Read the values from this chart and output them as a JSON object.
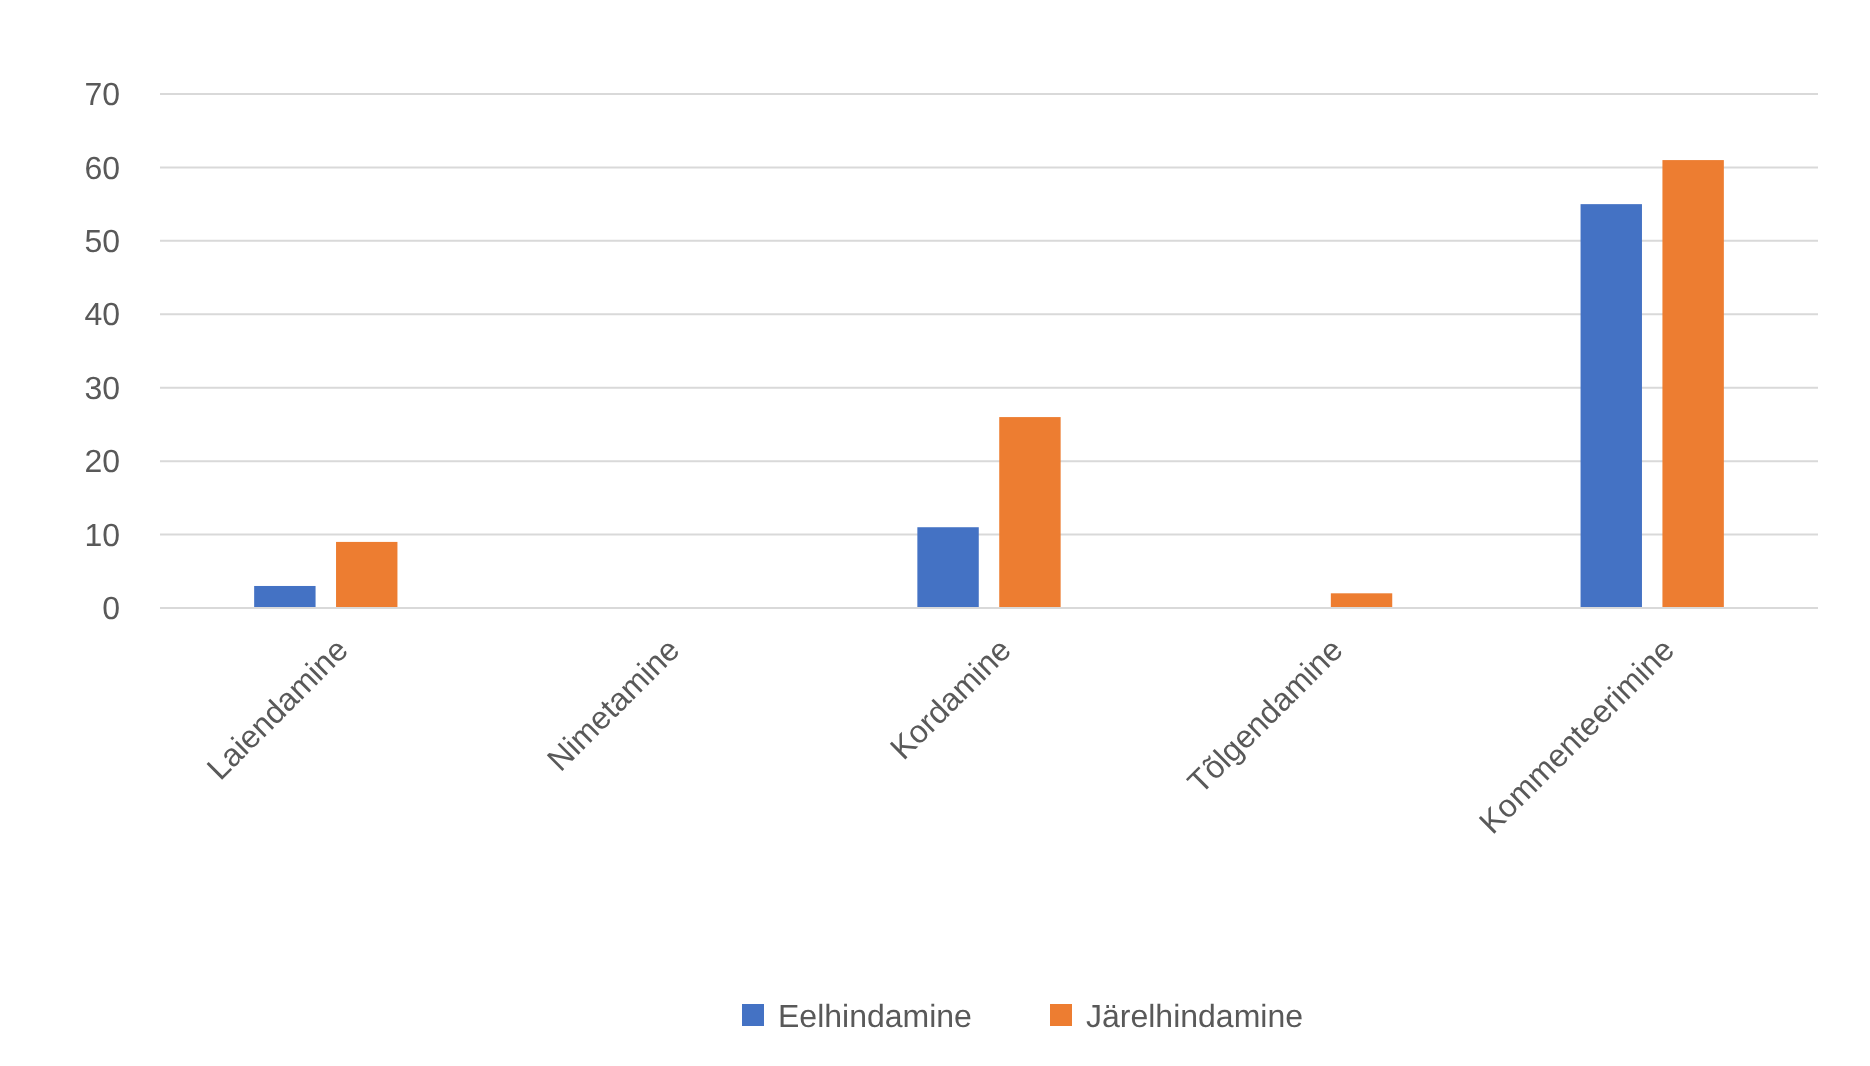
{
  "chart_data": {
    "type": "bar",
    "categories": [
      "Laiendamine",
      "Nimetamine",
      "Kordamine",
      "Tõlgendamine",
      "Kommenteerimine"
    ],
    "series": [
      {
        "name": "Eelhindamine",
        "color": "#4472c4",
        "values": [
          3,
          0,
          11,
          0,
          55
        ]
      },
      {
        "name": "Järelhindamine",
        "color": "#ed7d31",
        "values": [
          9,
          0,
          26,
          2,
          61
        ]
      }
    ],
    "ylim": [
      0,
      70
    ],
    "yticks": [
      0,
      10,
      20,
      30,
      40,
      50,
      60,
      70
    ],
    "grid": "y",
    "legend": "bottom"
  }
}
